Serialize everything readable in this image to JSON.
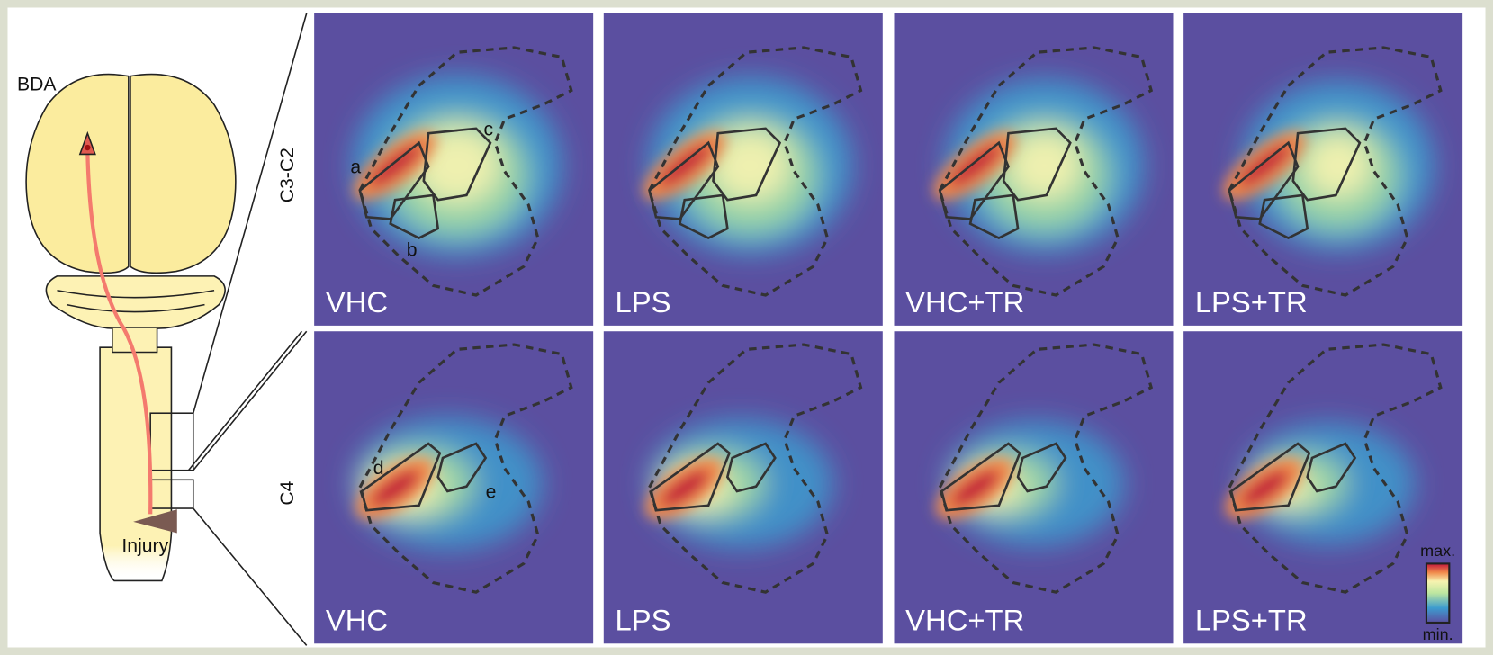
{
  "labels": {
    "tracer": "BDA",
    "injury": "Injury"
  },
  "rows": [
    {
      "level": "C3-C2",
      "panels": [
        "VHC",
        "LPS",
        "VHC+TR",
        "LPS+TR"
      ],
      "regions": [
        "a",
        "b",
        "c"
      ]
    },
    {
      "level": "C4",
      "panels": [
        "VHC",
        "LPS",
        "VHC+TR",
        "LPS+TR"
      ],
      "regions": [
        "d",
        "e"
      ]
    }
  ],
  "colorbar": {
    "max": "max.",
    "min": "min."
  }
}
